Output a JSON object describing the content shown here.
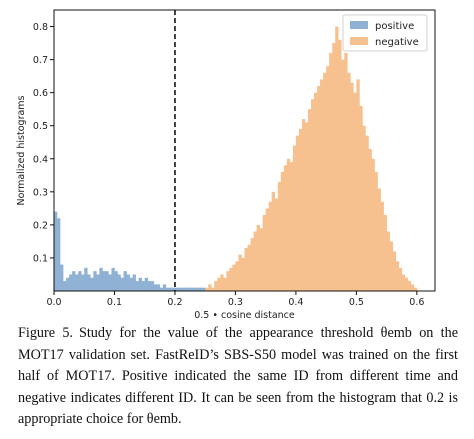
{
  "chart_data": {
    "type": "histogram",
    "xlabel": "0.5 • cosine distance",
    "ylabel": "Normalized histograms",
    "xlim": [
      0.0,
      0.63
    ],
    "ylim": [
      0.0,
      0.85
    ],
    "x_ticks": [
      "0.0",
      "0.1",
      "0.2",
      "0.3",
      "0.4",
      "0.5",
      "0.6"
    ],
    "x_tick_values": [
      0.0,
      0.1,
      0.2,
      0.3,
      0.4,
      0.5,
      0.6
    ],
    "y_ticks": [
      "0.1",
      "0.2",
      "0.3",
      "0.4",
      "0.5",
      "0.6",
      "0.7",
      "0.8"
    ],
    "y_tick_values": [
      0.1,
      0.2,
      0.3,
      0.4,
      0.5,
      0.6,
      0.7,
      0.8
    ],
    "threshold_line": 0.2,
    "legend_position": "top-right",
    "bin_width": 0.005,
    "series": [
      {
        "name": "positive",
        "color": "#8fb1d4",
        "bin_start": 0.0,
        "values": [
          0.24,
          0.22,
          0.08,
          0.03,
          0.04,
          0.05,
          0.06,
          0.05,
          0.06,
          0.05,
          0.07,
          0.05,
          0.04,
          0.06,
          0.05,
          0.07,
          0.06,
          0.06,
          0.05,
          0.07,
          0.06,
          0.05,
          0.04,
          0.06,
          0.05,
          0.04,
          0.05,
          0.03,
          0.04,
          0.03,
          0.04,
          0.03,
          0.03,
          0.02,
          0.02,
          0.01,
          0.02,
          0.01,
          0.01,
          0.01,
          0.01,
          0.01,
          0.01,
          0.01,
          0.01,
          0.01,
          0.01,
          0.01,
          0.01,
          0.01
        ]
      },
      {
        "name": "negative",
        "color": "#f6c08f",
        "bin_start": 0.25,
        "values": [
          0.01,
          0.02,
          0.01,
          0.03,
          0.04,
          0.05,
          0.04,
          0.06,
          0.07,
          0.08,
          0.09,
          0.11,
          0.1,
          0.13,
          0.14,
          0.16,
          0.18,
          0.2,
          0.19,
          0.23,
          0.25,
          0.27,
          0.3,
          0.28,
          0.33,
          0.36,
          0.38,
          0.4,
          0.39,
          0.44,
          0.47,
          0.49,
          0.52,
          0.51,
          0.55,
          0.58,
          0.6,
          0.62,
          0.64,
          0.66,
          0.68,
          0.72,
          0.75,
          0.8,
          0.76,
          0.7,
          0.72,
          0.66,
          0.63,
          0.6,
          0.64,
          0.56,
          0.5,
          0.47,
          0.43,
          0.4,
          0.36,
          0.31,
          0.27,
          0.23,
          0.18,
          0.15,
          0.12,
          0.09,
          0.07,
          0.05,
          0.04,
          0.03,
          0.02,
          0.01
        ]
      }
    ]
  },
  "caption": {
    "label": "Figure 5.",
    "text": "Study for the value of the appearance threshold θemb on the MOT17 validation set. FastReID’s SBS-S50 model was trained on the first half of MOT17. Positive indicated the same ID from different time and negative indicates different ID. It can be seen from the histogram that 0.2 is appropriate choice for θemb."
  }
}
